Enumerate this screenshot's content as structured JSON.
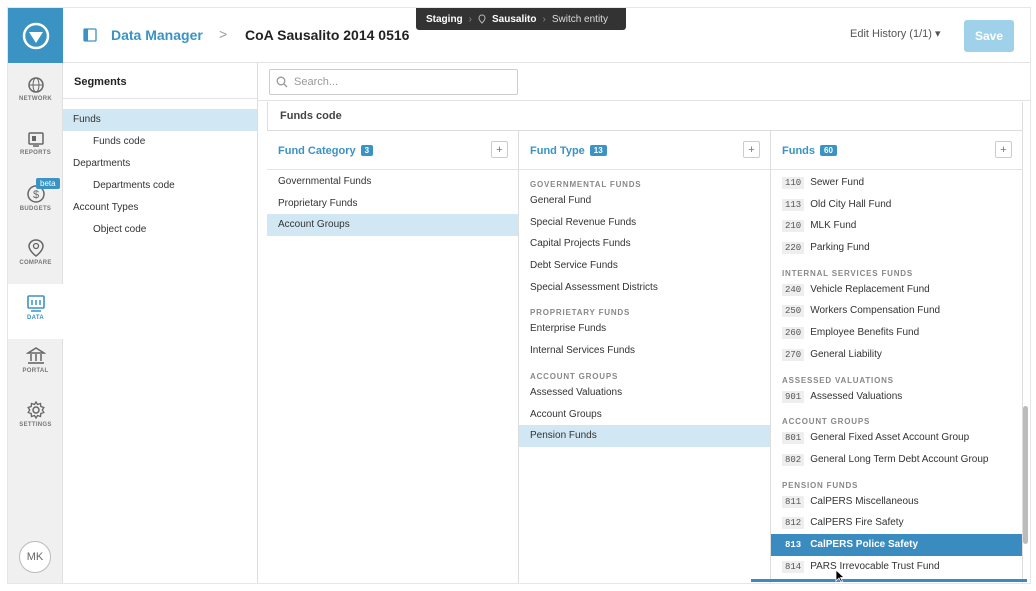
{
  "rail": {
    "items": [
      {
        "label": "NETWORK",
        "icon": "globe-icon"
      },
      {
        "label": "REPORTS",
        "icon": "reports-icon"
      },
      {
        "label": "BUDGETS",
        "icon": "budgets-icon",
        "badge": "beta"
      },
      {
        "label": "COMPARE",
        "icon": "compare-icon"
      },
      {
        "label": "DATA",
        "icon": "data-icon"
      },
      {
        "label": "PORTAL",
        "icon": "portal-icon"
      },
      {
        "label": "SETTINGS",
        "icon": "gear-icon"
      }
    ],
    "avatar": "MK"
  },
  "topbar": {
    "app_name": "Data Manager",
    "separator": ">",
    "title": "CoA Sausalito 2014 0516",
    "env": {
      "mode": "Staging",
      "entity": "Sausalito",
      "switch": "Switch entity"
    },
    "edit_history": "Edit History (1/1) ▾",
    "save": "Save"
  },
  "segments": {
    "header": "Segments",
    "items": [
      {
        "label": "Funds",
        "level": 0
      },
      {
        "label": "Funds code",
        "level": 1
      },
      {
        "label": "Departments",
        "level": 0
      },
      {
        "label": "Departments code",
        "level": 1
      },
      {
        "label": "Account Types",
        "level": 0
      },
      {
        "label": "Object code",
        "level": 1
      }
    ]
  },
  "search": {
    "placeholder": "Search..."
  },
  "breadcrumb": "Funds code",
  "columns": {
    "category": {
      "title": "Fund Category",
      "count": "3",
      "items": [
        "Governmental Funds",
        "Proprietary Funds",
        "Account Groups"
      ]
    },
    "type": {
      "title": "Fund Type",
      "count": "13",
      "groups": [
        {
          "name": "GOVERNMENTAL FUNDS",
          "items": [
            "General Fund",
            "Special Revenue Funds",
            "Capital Projects Funds",
            "Debt Service Funds",
            "Special Assessment Districts"
          ]
        },
        {
          "name": "PROPRIETARY FUNDS",
          "items": [
            "Enterprise Funds",
            "Internal Services Funds"
          ]
        },
        {
          "name": "ACCOUNT GROUPS",
          "items": [
            "Assessed Valuations",
            "Account Groups",
            "Pension Funds"
          ]
        }
      ]
    },
    "funds": {
      "title": "Funds",
      "count": "60",
      "groups": [
        {
          "name": "",
          "items": [
            [
              "110",
              "Sewer Fund"
            ],
            [
              "113",
              "Old City Hall Fund"
            ],
            [
              "210",
              "MLK Fund"
            ],
            [
              "220",
              "Parking Fund"
            ]
          ]
        },
        {
          "name": "INTERNAL SERVICES FUNDS",
          "items": [
            [
              "240",
              "Vehicle Replacement Fund"
            ],
            [
              "250",
              "Workers Compensation Fund"
            ],
            [
              "260",
              "Employee Benefits Fund"
            ],
            [
              "270",
              "General Liability"
            ]
          ]
        },
        {
          "name": "ASSESSED VALUATIONS",
          "items": [
            [
              "901",
              "Assessed Valuations"
            ]
          ]
        },
        {
          "name": "ACCOUNT GROUPS",
          "items": [
            [
              "801",
              "General Fixed Asset Account Group"
            ],
            [
              "802",
              "General Long Term Debt Account Group"
            ]
          ]
        },
        {
          "name": "PENSION FUNDS",
          "items": [
            [
              "811",
              "CalPERS Miscellaneous"
            ],
            [
              "812",
              "CalPERS Fire Safety"
            ],
            [
              "813",
              "CalPERS Police Safety"
            ],
            [
              "814",
              "PARS Irrevocable Trust Fund"
            ]
          ]
        }
      ]
    }
  }
}
